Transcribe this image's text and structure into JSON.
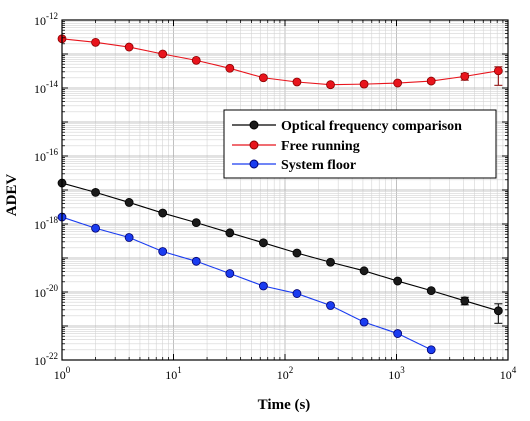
{
  "chart_data": {
    "type": "scatter",
    "title": "",
    "xlabel": "Time (s)",
    "ylabel": "ADEV",
    "xscale": "log",
    "yscale": "log",
    "xlim": [
      1,
      10000
    ],
    "ylim": [
      1e-22,
      1e-12
    ],
    "grid": true,
    "legend_position": "right",
    "x_ticks": [
      {
        "base": "10",
        "exp": "0"
      },
      {
        "base": "10",
        "exp": "1"
      },
      {
        "base": "10",
        "exp": "2"
      },
      {
        "base": "10",
        "exp": "3"
      },
      {
        "base": "10",
        "exp": "4"
      }
    ],
    "y_ticks": [
      {
        "base": "10",
        "exp": "-22"
      },
      {
        "base": "10",
        "exp": "-20"
      },
      {
        "base": "10",
        "exp": "-18"
      },
      {
        "base": "10",
        "exp": "-16"
      },
      {
        "base": "10",
        "exp": "-14"
      },
      {
        "base": "10",
        "exp": "-12"
      }
    ],
    "series": [
      {
        "name": "Optical frequency comparison",
        "color": "#000000",
        "marker_fill": "#1a1a1a",
        "x": [
          1,
          2,
          4,
          8,
          16,
          32,
          64,
          128,
          256,
          512,
          1024,
          2048,
          4096,
          8192
        ],
        "y": [
          1.6e-17,
          8.5e-18,
          4.3e-18,
          2.1e-18,
          1.1e-18,
          5.5e-19,
          2.8e-19,
          1.4e-19,
          7.5e-20,
          4.2e-20,
          2.1e-20,
          1.1e-20,
          5.5e-21,
          2.8e-21
        ],
        "err_low": [
          1.6e-17,
          8.5e-18,
          4.3e-18,
          2.1e-18,
          1.1e-18,
          5.5e-19,
          2.8e-19,
          1.4e-19,
          7.5e-20,
          4.2e-20,
          2.1e-20,
          1.1e-20,
          4.2e-21,
          1.2e-21
        ],
        "err_high": [
          1.6e-17,
          8.5e-18,
          4.3e-18,
          2.1e-18,
          1.1e-18,
          5.5e-19,
          2.8e-19,
          1.4e-19,
          7.5e-20,
          4.2e-20,
          2.1e-20,
          1.1e-20,
          7e-21,
          4.5e-21
        ]
      },
      {
        "name": "Free running",
        "color": "#e8141c",
        "marker_fill": "#e8141c",
        "x": [
          1,
          2,
          4,
          8,
          16,
          32,
          64,
          128,
          256,
          512,
          1024,
          2048,
          4096,
          8192
        ],
        "y": [
          2.8e-13,
          2.2e-13,
          1.6e-13,
          1e-13,
          6.5e-14,
          3.8e-14,
          2e-14,
          1.5e-14,
          1.25e-14,
          1.3e-14,
          1.4e-14,
          1.6e-14,
          2.2e-14,
          3.2e-14
        ],
        "err_low": [
          2.8e-13,
          2.2e-13,
          1.6e-13,
          1e-13,
          6.5e-14,
          3.8e-14,
          2e-14,
          1.5e-14,
          1.25e-14,
          1.3e-14,
          1.4e-14,
          1.4e-14,
          1.7e-14,
          1.2e-14
        ],
        "err_high": [
          2.8e-13,
          2.2e-13,
          1.6e-13,
          1e-13,
          6.5e-14,
          3.8e-14,
          2e-14,
          1.5e-14,
          1.25e-14,
          1.3e-14,
          1.4e-14,
          1.8e-14,
          2.7e-14,
          4.2e-14
        ]
      },
      {
        "name": "System floor",
        "color": "#1a3cf0",
        "marker_fill": "#1a3cf0",
        "x": [
          1,
          2,
          4,
          8,
          16,
          32,
          64,
          128,
          256,
          512,
          1024,
          2048
        ],
        "y": [
          1.6e-18,
          7.5e-19,
          4e-19,
          1.55e-19,
          8e-20,
          3.5e-20,
          1.5e-20,
          9e-21,
          4e-21,
          1.3e-21,
          6e-22,
          2e-22
        ]
      }
    ]
  }
}
